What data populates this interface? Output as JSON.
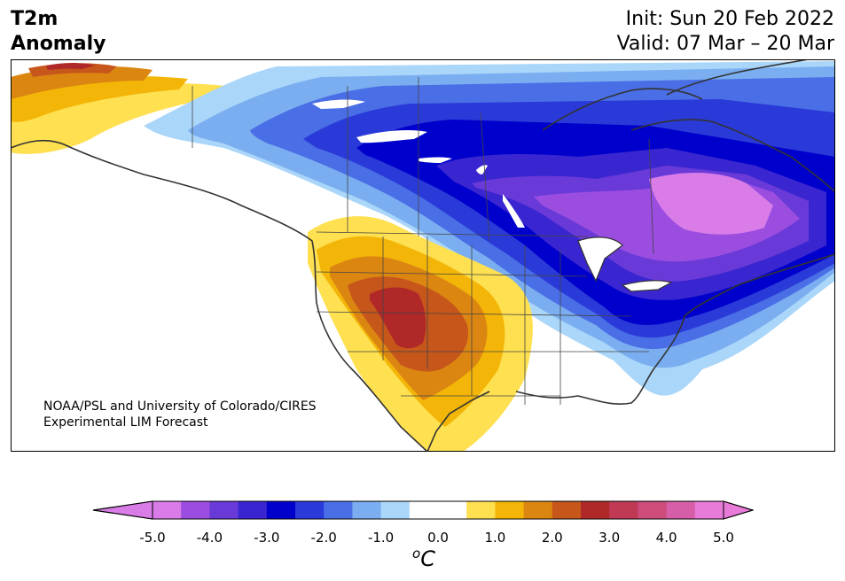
{
  "title": {
    "left_line1": "T2m",
    "left_line2": "Anomaly",
    "init": "Init: Sun 20 Feb 2022",
    "valid": "Valid: 07 Mar – 20 Mar"
  },
  "credit": {
    "line1": "NOAA/PSL and University of Colorado/CIRES",
    "line2": "Experimental LIM Forecast"
  },
  "colorbar": {
    "units_base": "C",
    "units_sup": "o",
    "ticks": [
      "-5.0",
      "-4.0",
      "-3.0",
      "-2.0",
      "-1.0",
      "0.0",
      "1.0",
      "2.0",
      "3.0",
      "4.0",
      "5.0"
    ],
    "under_color": "#d97ce8",
    "over_color": "#e87ad8",
    "colors": [
      "#d97ce8",
      "#9b4de0",
      "#6a3ad8",
      "#3a26d0",
      "#0000cc",
      "#2a3ad8",
      "#4a6ee6",
      "#7aaef0",
      "#aad6fa",
      "#ffffff",
      "#ffffff",
      "#fee050",
      "#f3b608",
      "#dc8612",
      "#c6561a",
      "#b02828",
      "#c03a56",
      "#cc4c7c",
      "#d65ea6",
      "#e87ad8"
    ]
  },
  "map": {
    "region": "North America",
    "field": "T2m anomaly",
    "max_warm_value": 3.0,
    "max_cold_value": -5.0
  }
}
